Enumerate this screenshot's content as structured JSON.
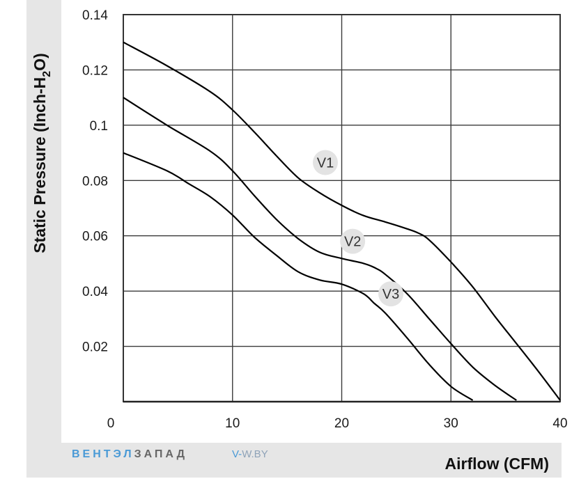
{
  "chart_data": {
    "type": "line",
    "xlabel": "Airflow (CFM)",
    "ylabel_parts": [
      "Static Pressure (Inch-H",
      "2",
      "O)"
    ],
    "xlim": [
      0,
      40
    ],
    "ylim": [
      0,
      0.14
    ],
    "x_ticks": [
      "0",
      "10",
      "20",
      "30",
      "40"
    ],
    "y_ticks": [
      "0.14",
      "0.12",
      "0.1",
      "0.08",
      "0.06",
      "0.04",
      "0.02"
    ],
    "y_tick_values": [
      0.14,
      0.12,
      0.1,
      0.08,
      0.06,
      0.04,
      0.02
    ],
    "x_tick_values": [
      0,
      10,
      20,
      30,
      40
    ],
    "grid": true,
    "series": [
      {
        "name": "V1",
        "x": [
          0,
          4,
          8,
          10,
          12,
          14,
          16,
          18,
          20,
          22,
          24,
          26,
          27,
          28,
          30,
          32,
          34,
          36,
          38,
          40
        ],
        "y": [
          0.13,
          0.1215,
          0.112,
          0.1055,
          0.0975,
          0.089,
          0.081,
          0.0755,
          0.071,
          0.0673,
          0.065,
          0.0625,
          0.061,
          0.0585,
          0.0505,
          0.0415,
          0.031,
          0.021,
          0.011,
          0.0005
        ]
      },
      {
        "name": "V2",
        "x": [
          0,
          4,
          8,
          10,
          12,
          14,
          16,
          18,
          20,
          22,
          23,
          24,
          26,
          28,
          30,
          32,
          34,
          36
        ],
        "y": [
          0.11,
          0.1,
          0.0905,
          0.0835,
          0.0745,
          0.066,
          0.059,
          0.054,
          0.0518,
          0.05,
          0.0485,
          0.046,
          0.039,
          0.03,
          0.021,
          0.0125,
          0.006,
          0.0005
        ]
      },
      {
        "name": "V3",
        "x": [
          0,
          4,
          6,
          8,
          10,
          12,
          14,
          16,
          18,
          20,
          22,
          23,
          24,
          26,
          28,
          30,
          32
        ],
        "y": [
          0.09,
          0.0835,
          0.0788,
          0.074,
          0.0675,
          0.0595,
          0.053,
          0.047,
          0.044,
          0.0425,
          0.039,
          0.0355,
          0.032,
          0.023,
          0.0135,
          0.0055,
          0.0005
        ]
      }
    ],
    "annotations": [
      "V1",
      "V2",
      "V3"
    ]
  },
  "watermark": {
    "brand_blue": "ВЕНТЭЛ",
    "brand_grey": "ЗАПАД",
    "url_prefix": "V-",
    "url_rest": "W.BY"
  },
  "colors": {
    "background_panel": "#e6e6e6",
    "grid": "#3a3a3a",
    "curve": "#000000",
    "label_bubble": "#e3e3e3",
    "brand_blue": "#4a9ad6"
  }
}
